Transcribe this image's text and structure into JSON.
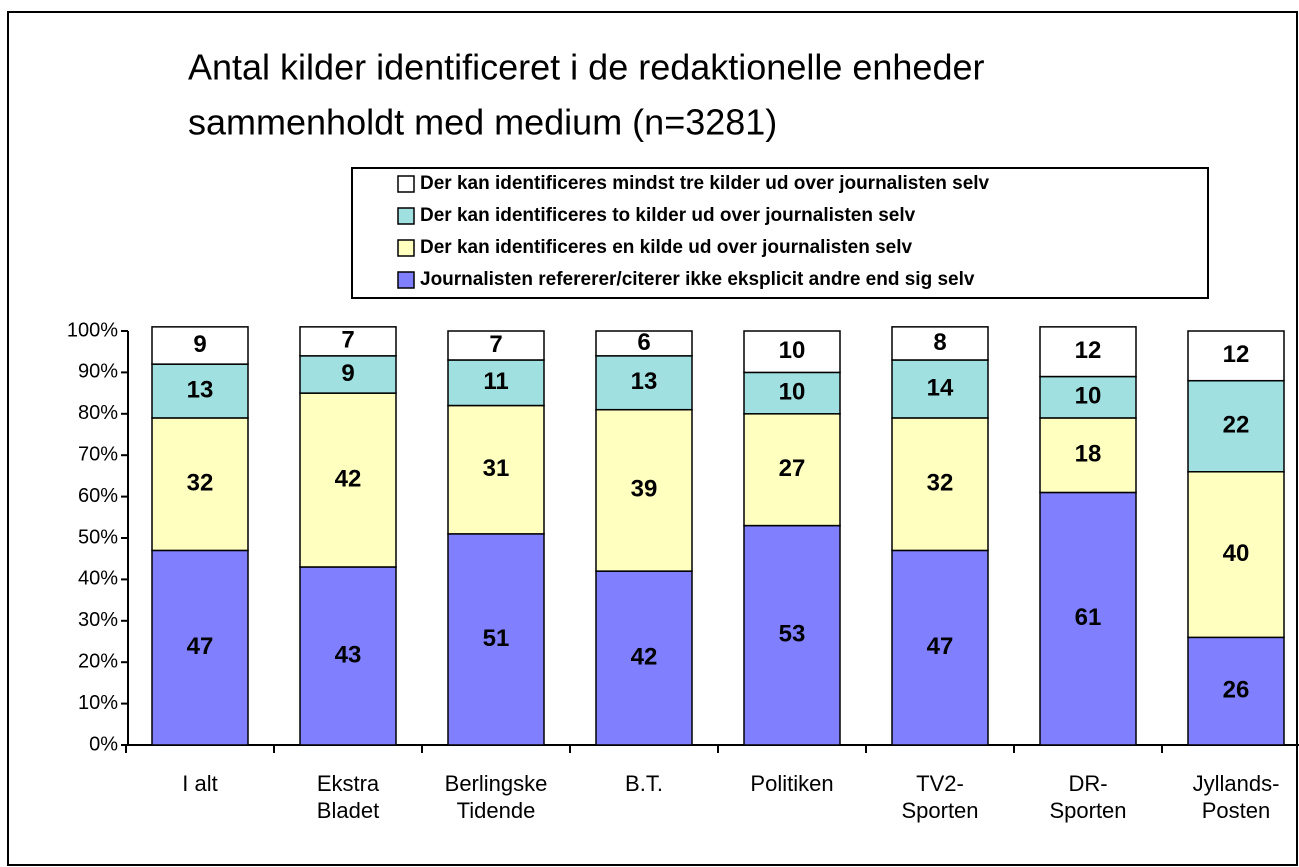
{
  "chart_data": {
    "type": "stacked_bar",
    "title": [
      "Antal kilder identificeret i de redaktionelle enheder",
      "sammenholdt med medium (n=3281)"
    ],
    "categories": [
      "I alt",
      "Ekstra Bladet",
      "Berlingske Tidende",
      "B.T.",
      "Politiken",
      "TV2-Sporten",
      "DR-Sporten",
      "Jyllands-Posten"
    ],
    "series": [
      {
        "name": "Journalisten refererer/citerer ikke eksplicit andre end sig selv",
        "color": "#8080ff",
        "values": [
          47,
          43,
          51,
          42,
          53,
          47,
          61,
          26
        ]
      },
      {
        "name": "Der kan identificeres en kilde ud over journalisten selv",
        "color": "#ffffc0",
        "values": [
          32,
          42,
          31,
          39,
          27,
          32,
          18,
          40
        ]
      },
      {
        "name": "Der kan identificeres to kilder ud over journalisten selv",
        "color": "#a0e0e0",
        "values": [
          13,
          9,
          11,
          13,
          10,
          14,
          10,
          22
        ]
      },
      {
        "name": "Der kan identificeres mindst tre kilder ud over journalisten selv",
        "color": "#ffffff",
        "values": [
          9,
          7,
          7,
          6,
          10,
          8,
          12,
          12
        ]
      }
    ],
    "ylim": [
      0,
      100
    ],
    "yticks": [
      {
        "value": 0,
        "label": "0%"
      },
      {
        "value": 10,
        "label": "10%"
      },
      {
        "value": 20,
        "label": "20%"
      },
      {
        "value": 30,
        "label": "30%"
      },
      {
        "value": 40,
        "label": "40%"
      },
      {
        "value": 50,
        "label": "50%"
      },
      {
        "value": 60,
        "label": "60%"
      },
      {
        "value": 70,
        "label": "70%"
      },
      {
        "value": 80,
        "label": "80%"
      },
      {
        "value": 90,
        "label": "90%"
      },
      {
        "value": 100,
        "label": "100%"
      }
    ],
    "legend": "top"
  }
}
